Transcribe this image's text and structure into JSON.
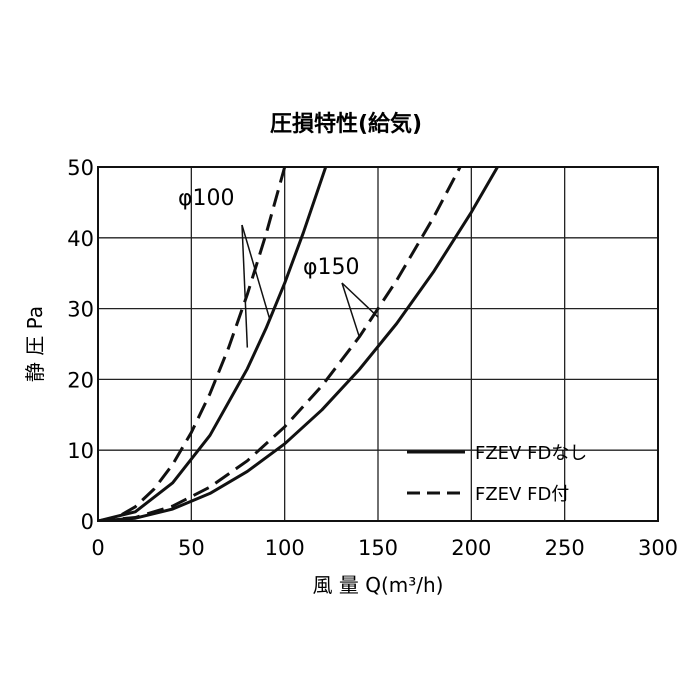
{
  "chart_data": {
    "type": "line",
    "title": "圧損特性(給気)",
    "xlabel": "風 量 Q(m³/h)",
    "ylabel": "静 圧 Pa",
    "xlim": [
      0,
      300
    ],
    "ylim": [
      0,
      50
    ],
    "xticks": [
      0,
      50,
      100,
      150,
      200,
      250,
      300
    ],
    "yticks": [
      0,
      10,
      20,
      30,
      40,
      50
    ],
    "grid": true,
    "legend_position": "bottom-right",
    "legend": [
      {
        "label": "FZEV FDなし",
        "style": "solid"
      },
      {
        "label": "FZEV FD付",
        "style": "dashed"
      }
    ],
    "annotations": [
      {
        "text": "φ100",
        "points_to": [
          "φ100 FD付",
          "φ100 FDなし"
        ]
      },
      {
        "text": "φ150",
        "points_to": [
          "φ150 FD付",
          "φ150 FDなし"
        ]
      }
    ],
    "series": [
      {
        "duct": "φ100",
        "style": "dashed",
        "x": [
          0,
          10,
          20,
          30,
          40,
          50,
          60,
          70,
          80,
          90,
          100
        ],
        "y": [
          0,
          0.5,
          2,
          4.5,
          8,
          12.5,
          18,
          24.5,
          32,
          40.5,
          50
        ]
      },
      {
        "duct": "φ100",
        "style": "solid",
        "x": [
          0,
          20,
          40,
          60,
          80,
          90,
          100,
          110,
          122
        ],
        "y": [
          0,
          1.3,
          5.4,
          12.1,
          21.5,
          27.2,
          33.6,
          40.7,
          50
        ]
      },
      {
        "duct": "φ150",
        "style": "dashed",
        "x": [
          0,
          20,
          40,
          60,
          80,
          100,
          120,
          140,
          160,
          180,
          194
        ],
        "y": [
          0,
          0.5,
          2.1,
          4.8,
          8.5,
          13.3,
          19.1,
          26,
          34,
          43,
          50
        ]
      },
      {
        "duct": "φ150",
        "style": "solid",
        "x": [
          0,
          20,
          40,
          60,
          80,
          100,
          120,
          140,
          160,
          180,
          200,
          214
        ],
        "y": [
          0,
          0.4,
          1.7,
          3.9,
          7,
          10.9,
          15.7,
          21.4,
          27.9,
          35.3,
          43.6,
          50
        ]
      }
    ]
  }
}
